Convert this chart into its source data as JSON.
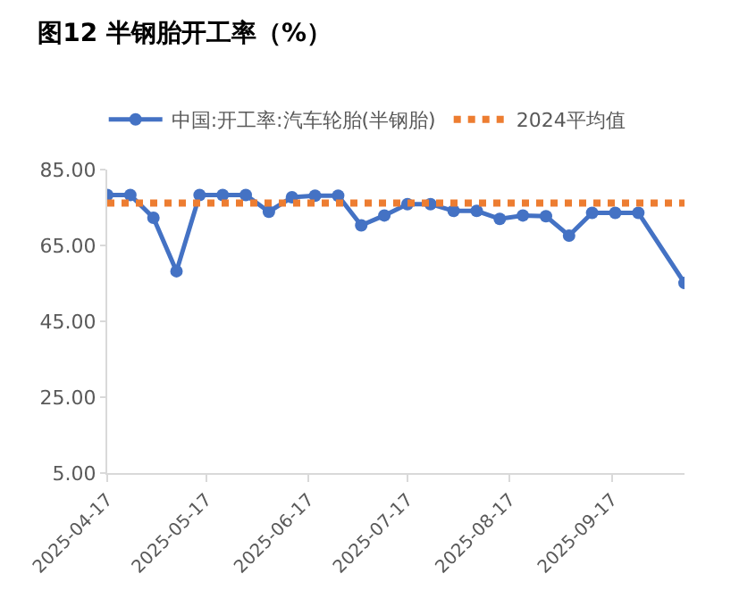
{
  "chart_data": {
    "type": "line",
    "title": "图12 半钢胎开工率（%）",
    "x": [
      "2025-04-17",
      "2025-04-24",
      "2025-05-01",
      "2025-05-08",
      "2025-05-15",
      "2025-05-22",
      "2025-05-29",
      "2025-06-05",
      "2025-06-12",
      "2025-06-19",
      "2025-06-26",
      "2025-07-03",
      "2025-07-10",
      "2025-07-17",
      "2025-07-24",
      "2025-07-31",
      "2025-08-07",
      "2025-08-14",
      "2025-08-21",
      "2025-08-28",
      "2025-09-04",
      "2025-09-11",
      "2025-09-18",
      "2025-09-25",
      "2025-10-02",
      "2025-10-09"
    ],
    "series": [
      {
        "name": "中国:开工率:汽车轮胎(半钢胎)",
        "color": "#4472c4",
        "marker": "circle",
        "line_style": "solid",
        "x": [
          "2025-04-17",
          "2025-04-24",
          "2025-05-01",
          "2025-05-08",
          "2025-05-15",
          "2025-05-22",
          "2025-05-29",
          "2025-06-05",
          "2025-06-12",
          "2025-06-19",
          "2025-06-26",
          "2025-07-03",
          "2025-07-10",
          "2025-07-17",
          "2025-07-24",
          "2025-07-31",
          "2025-08-07",
          "2025-08-14",
          "2025-08-21",
          "2025-08-28",
          "2025-09-04",
          "2025-09-11",
          "2025-09-18",
          "2025-09-25",
          "2025-10-09"
        ],
        "values": [
          78.3,
          78.3,
          72.3,
          58.2,
          78.3,
          78.3,
          78.3,
          73.9,
          77.7,
          78.1,
          78.1,
          70.3,
          72.9,
          75.9,
          75.9,
          74.1,
          74.1,
          72.0,
          72.9,
          72.7,
          67.6,
          73.6,
          73.6,
          73.6,
          55.1
        ]
      },
      {
        "name": "2024平均值",
        "color": "#ed7d31",
        "marker": "none",
        "line_style": "dotted",
        "values": [
          76.2,
          76.2,
          76.2,
          76.2,
          76.2,
          76.2,
          76.2,
          76.2,
          76.2,
          76.2,
          76.2,
          76.2,
          76.2,
          76.2,
          76.2,
          76.2,
          76.2,
          76.2,
          76.2,
          76.2,
          76.2,
          76.2,
          76.2,
          76.2,
          76.2,
          76.2
        ]
      }
    ],
    "xlim": [
      "2025-04-17",
      "2025-10-09"
    ],
    "xticks": [
      "2025-04-17",
      "2025-05-17",
      "2025-06-17",
      "2025-07-17",
      "2025-08-17",
      "2025-09-17"
    ],
    "ylim": [
      5,
      85
    ],
    "yticks": [
      {
        "value": 5,
        "label": "5.00"
      },
      {
        "value": 25,
        "label": "25.00"
      },
      {
        "value": 45,
        "label": "45.00"
      },
      {
        "value": 65,
        "label": "65.00"
      },
      {
        "value": 85,
        "label": "85.00"
      }
    ],
    "grid": false,
    "legend": "top"
  }
}
